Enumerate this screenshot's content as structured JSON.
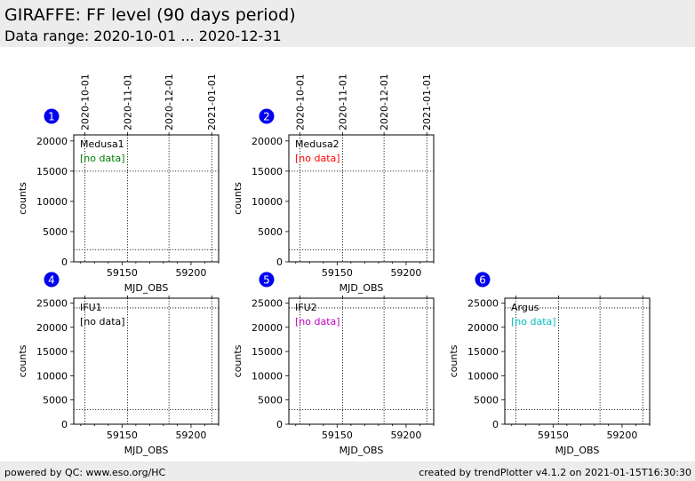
{
  "header": {
    "title": "GIRAFFE: FF level (90 days period)",
    "subtitle": "Data range: 2020-10-01 ... 2020-12-31"
  },
  "footer": {
    "left": "powered by QC: www.eso.org/HC",
    "right": "created by trendPlotter v4.1.2 on 2021-01-15T16:30:30"
  },
  "chart_data": [
    {
      "type": "scatter",
      "number": "1",
      "label": "Medusa1",
      "status": "[no data]",
      "status_color": "#008000",
      "xlabel": "MJD_OBS",
      "ylabel": "counts",
      "xlim": [
        59115,
        59220
      ],
      "ylim": [
        0,
        21000
      ],
      "xticks": [
        59150,
        59200
      ],
      "yticks": [
        0,
        5000,
        10000,
        15000,
        20000
      ],
      "date_ticks": [
        {
          "mjd": 59123,
          "label": "2020-10-01"
        },
        {
          "mjd": 59154,
          "label": "2020-11-01"
        },
        {
          "mjd": 59184,
          "label": "2020-12-01"
        },
        {
          "mjd": 59215,
          "label": "2021-01-01"
        }
      ],
      "ref_lines": [
        15000,
        2000
      ],
      "series": []
    },
    {
      "type": "scatter",
      "number": "2",
      "label": "Medusa2",
      "status": "[no data]",
      "status_color": "#ff0000",
      "xlabel": "MJD_OBS",
      "ylabel": "counts",
      "xlim": [
        59115,
        59220
      ],
      "ylim": [
        0,
        21000
      ],
      "xticks": [
        59150,
        59200
      ],
      "yticks": [
        0,
        5000,
        10000,
        15000,
        20000
      ],
      "date_ticks": [
        {
          "mjd": 59123,
          "label": "2020-10-01"
        },
        {
          "mjd": 59154,
          "label": "2020-11-01"
        },
        {
          "mjd": 59184,
          "label": "2020-12-01"
        },
        {
          "mjd": 59215,
          "label": "2021-01-01"
        }
      ],
      "ref_lines": [
        15000,
        2000
      ],
      "series": []
    },
    {
      "type": "scatter",
      "number": "4",
      "label": "IFU1",
      "status": "[no data]",
      "status_color": "#000000",
      "xlabel": "MJD_OBS",
      "ylabel": "counts",
      "xlim": [
        59115,
        59220
      ],
      "ylim": [
        0,
        26000
      ],
      "xticks": [
        59150,
        59200
      ],
      "yticks": [
        0,
        5000,
        10000,
        15000,
        20000,
        25000
      ],
      "date_ticks": [
        {
          "mjd": 59123
        },
        {
          "mjd": 59154
        },
        {
          "mjd": 59184
        },
        {
          "mjd": 59215
        }
      ],
      "ref_lines": [
        24000,
        3000
      ],
      "series": []
    },
    {
      "type": "scatter",
      "number": "5",
      "label": "IFU2",
      "status": "[no data]",
      "status_color": "#bf00bf",
      "xlabel": "MJD_OBS",
      "ylabel": "counts",
      "xlim": [
        59115,
        59220
      ],
      "ylim": [
        0,
        26000
      ],
      "xticks": [
        59150,
        59200
      ],
      "yticks": [
        0,
        5000,
        10000,
        15000,
        20000,
        25000
      ],
      "date_ticks": [
        {
          "mjd": 59123
        },
        {
          "mjd": 59154
        },
        {
          "mjd": 59184
        },
        {
          "mjd": 59215
        }
      ],
      "ref_lines": [
        24000,
        3000
      ],
      "series": []
    },
    {
      "type": "scatter",
      "number": "6",
      "label": "Argus",
      "status": "[no data]",
      "status_color": "#00bfbf",
      "xlabel": "MJD_OBS",
      "ylabel": "counts",
      "xlim": [
        59115,
        59220
      ],
      "ylim": [
        0,
        26000
      ],
      "xticks": [
        59150,
        59200
      ],
      "yticks": [
        0,
        5000,
        10000,
        15000,
        20000,
        25000
      ],
      "date_ticks": [
        {
          "mjd": 59123
        },
        {
          "mjd": 59154
        },
        {
          "mjd": 59184
        },
        {
          "mjd": 59215
        }
      ],
      "ref_lines": [
        24000,
        3000
      ],
      "series": []
    }
  ]
}
